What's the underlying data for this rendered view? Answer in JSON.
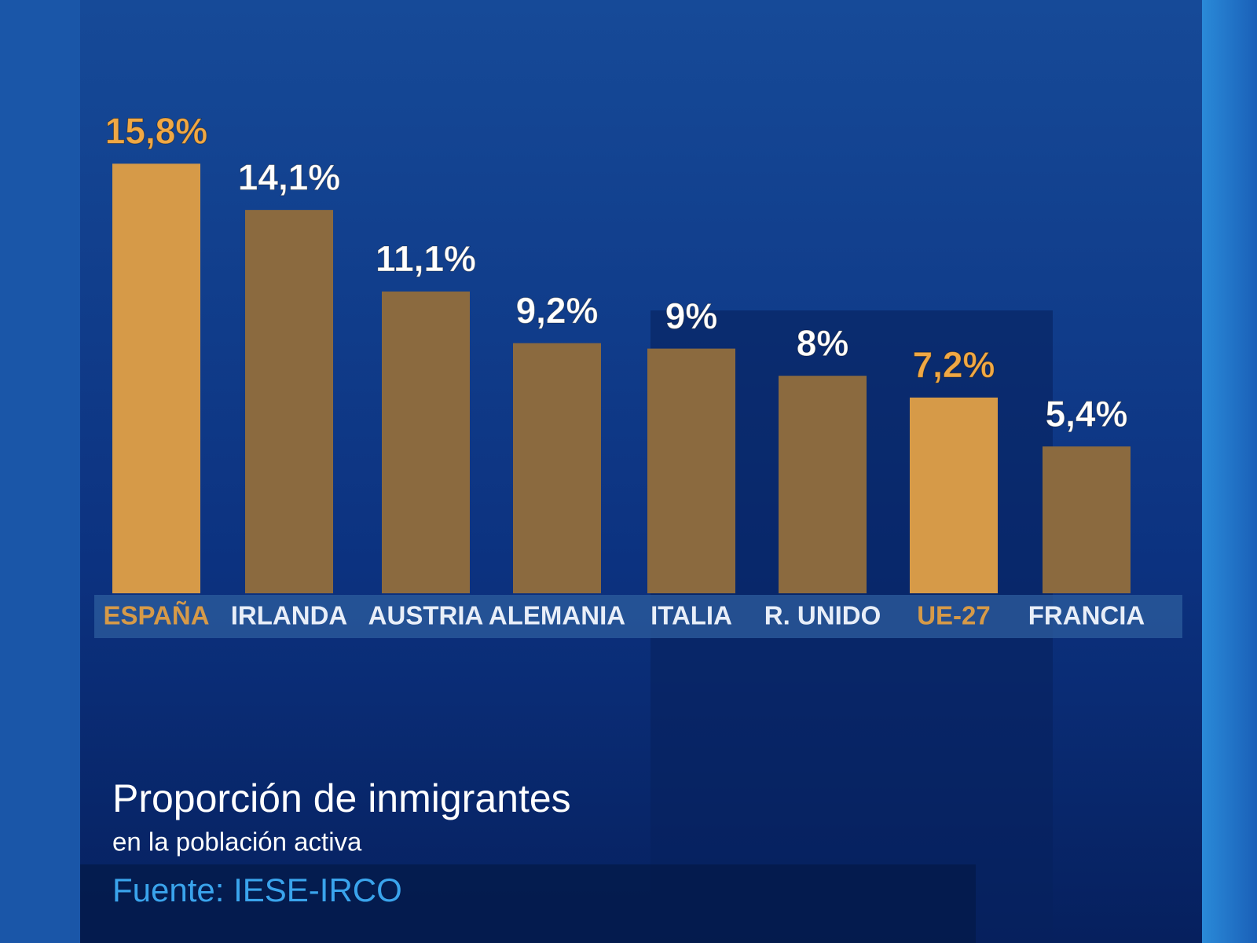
{
  "chart_data": {
    "type": "bar",
    "title": "Proporción de inmigrantes",
    "subtitle": "en la población activa",
    "source": "Fuente: IESE-IRCO",
    "categories": [
      "ESPAÑA",
      "IRLANDA",
      "AUSTRIA",
      "ALEMANIA",
      "ITALIA",
      "R. UNIDO",
      "UE-27",
      "FRANCIA"
    ],
    "values": [
      15.8,
      14.1,
      11.1,
      9.2,
      9,
      8,
      7.2,
      5.4
    ],
    "value_labels": [
      "15,8%",
      "14,1%",
      "11,1%",
      "9,2%",
      "9%",
      "8%",
      "7,2%",
      "5,4%"
    ],
    "colors": [
      "#d69a48",
      "#8b6a3f",
      "#8b6a3f",
      "#8b6a3f",
      "#8b6a3f",
      "#8b6a3f",
      "#d69a48",
      "#8b6a3f"
    ],
    "label_colors": [
      "#f0a845",
      "#ffffff",
      "#ffffff",
      "#ffffff",
      "#ffffff",
      "#ffffff",
      "#f0a845",
      "#ffffff"
    ]
  }
}
